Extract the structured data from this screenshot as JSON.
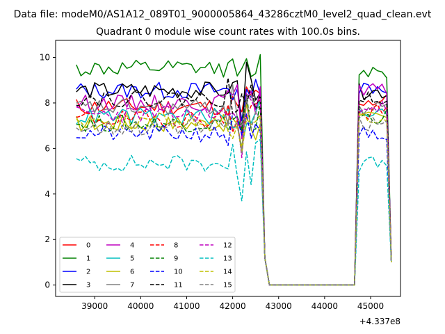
{
  "chart_data": {
    "type": "line",
    "suptitle": "Data file: modeM0/AS1A12_089T01_9000005864_43286cztM0_level2_quad_clean.evt",
    "title": "Quadrant 0 module wise count rates with 100.0s bins.",
    "xlabel": "",
    "ylabel": "",
    "x_offset_label": "+4.337e8",
    "xlim": [
      38150,
      45650
    ],
    "ylim": [
      -0.5,
      10.75
    ],
    "xticks": [
      39000,
      40000,
      41000,
      42000,
      43000,
      44000,
      45000
    ],
    "xtick_labels": [
      "39000",
      "40000",
      "41000",
      "42000",
      "43000",
      "44000",
      "45000"
    ],
    "yticks": [
      0,
      2,
      4,
      6,
      8,
      10
    ],
    "ytick_labels": [
      "0",
      "2",
      "4",
      "6",
      "8",
      "10"
    ],
    "legend_loc": "lower-left",
    "legend_columns": 4,
    "segments": [
      {
        "x_start": 38600,
        "step": 100,
        "count": 42
      },
      {
        "x_start": 44750,
        "step": 100,
        "count": 8
      }
    ],
    "series": [
      {
        "name": "0",
        "color": "#ff0000",
        "dash": "solid",
        "base": 7.85,
        "late": 8.1,
        "seed": 11
      },
      {
        "name": "1",
        "color": "#008000",
        "dash": "solid",
        "base": 9.5,
        "late": 9.45,
        "seed": 12
      },
      {
        "name": "2",
        "color": "#0000ff",
        "dash": "solid",
        "base": 8.55,
        "late": 8.7,
        "seed": 13
      },
      {
        "name": "3",
        "color": "#000000",
        "dash": "solid",
        "base": 8.55,
        "late": 8.5,
        "seed": 14
      },
      {
        "name": "4",
        "color": "#bf00bf",
        "dash": "solid",
        "base": 8.0,
        "late": 8.5,
        "seed": 15
      },
      {
        "name": "5",
        "color": "#00bfbf",
        "dash": "solid",
        "base": 7.4,
        "late": 7.5,
        "seed": 16
      },
      {
        "name": "6",
        "color": "#bfbf00",
        "dash": "solid",
        "base": 7.1,
        "late": 7.3,
        "seed": 17
      },
      {
        "name": "7",
        "color": "#808080",
        "dash": "solid",
        "base": 7.8,
        "late": 7.8,
        "seed": 18
      },
      {
        "name": "8",
        "color": "#ff0000",
        "dash": "dashed",
        "base": 7.3,
        "late": 7.6,
        "seed": 19
      },
      {
        "name": "9",
        "color": "#008000",
        "dash": "dashed",
        "base": 7.1,
        "late": 7.4,
        "seed": 20
      },
      {
        "name": "10",
        "color": "#0000ff",
        "dash": "dashed",
        "base": 6.65,
        "late": 6.7,
        "seed": 21
      },
      {
        "name": "11",
        "color": "#000000",
        "dash": "dashed",
        "base": 8.2,
        "late": 8.3,
        "seed": 22
      },
      {
        "name": "12",
        "color": "#bf00bf",
        "dash": "dashed",
        "base": 7.5,
        "late": 7.8,
        "seed": 23
      },
      {
        "name": "13",
        "color": "#00bfbf",
        "dash": "dashed",
        "base": 5.35,
        "late": 5.3,
        "seed": 24
      },
      {
        "name": "14",
        "color": "#bfbf00",
        "dash": "dashed",
        "base": 7.2,
        "late": 7.2,
        "seed": 25
      },
      {
        "name": "15",
        "color": "#808080",
        "dash": "dashed",
        "base": 6.95,
        "late": 7.1,
        "seed": 26
      }
    ]
  }
}
